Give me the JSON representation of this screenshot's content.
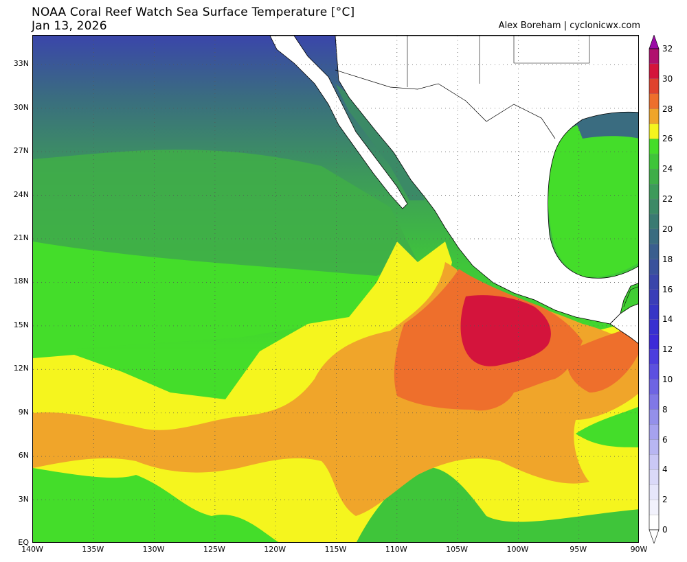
{
  "header": {
    "title": "NOAA Coral Reef Watch Sea Surface Temperature [°C]",
    "date": "Jan 13, 2026",
    "credit": "Alex Boreham | cyclonicwx.com"
  },
  "map": {
    "extent": {
      "lon_min": -140,
      "lon_max": -90,
      "lat_min": 0,
      "lat_max": 35
    },
    "lat_ticks": [
      "33N",
      "30N",
      "27N",
      "24N",
      "21N",
      "18N",
      "15N",
      "12N",
      "9N",
      "6N",
      "3N",
      "EQ"
    ],
    "lon_ticks": [
      "140W",
      "135W",
      "130W",
      "125W",
      "120W",
      "115W",
      "110W",
      "105W",
      "100W",
      "95W",
      "90W"
    ],
    "land_color": "#ffffff",
    "regions": [
      "Pacific Ocean",
      "Gulf of Mexico",
      "Gulf of California",
      "Mexico",
      "United States"
    ]
  },
  "colorbar": {
    "labels": [
      "32",
      "30",
      "28",
      "26",
      "24",
      "22",
      "20",
      "18",
      "16",
      "14",
      "12",
      "10",
      "8",
      "6",
      "4",
      "2",
      "0"
    ],
    "colors": {
      "32": "#9b0aa6",
      "31": "#b0106e",
      "30": "#d4143c",
      "29": "#e0432e",
      "28": "#ee6f2c",
      "27": "#f0a52a",
      "26": "#f5f51e",
      "25": "#44dd2a",
      "24": "#3fc53a",
      "23": "#3fae48",
      "22": "#3d9a5a",
      "21": "#3b8a66",
      "20": "#3a7a72",
      "19": "#3a6c80",
      "18": "#3a5e8e",
      "17": "#3a529c",
      "16": "#3a46aa",
      "15": "#3a3eb8",
      "14": "#3636c6",
      "13": "#3830d0",
      "12": "#3d2ad8",
      "11": "#4c3dde",
      "10": "#5c50e0",
      "9": "#6e64e3",
      "8": "#8078e6",
      "7": "#9490ea",
      "6": "#a6a2ee",
      "5": "#b8b6f2",
      "4": "#cac8f5",
      "3": "#dad9f8",
      "2": "#e6e6fa",
      "1": "#f2f2fc",
      "0": "#ffffff"
    }
  }
}
